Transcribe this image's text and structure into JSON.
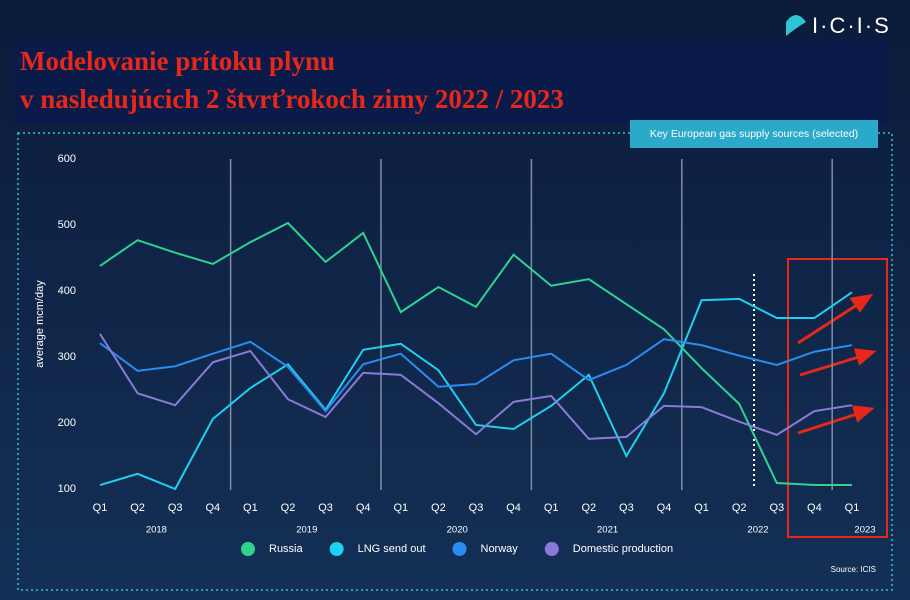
{
  "logo": "I·C·I·S",
  "chart_data": {
    "type": "line",
    "title": [
      "Modelovanie prítoku plynu",
      "v nasledujúcich 2 štvrťrokoch zimy 2022 / 2023"
    ],
    "subtitle": "Key European gas supply sources (selected)",
    "y_label": "average mcm/day",
    "source": "Source: ICIS",
    "categories": [
      "Q1",
      "Q2",
      "Q3",
      "Q4",
      "Q1",
      "Q2",
      "Q3",
      "Q4",
      "Q1",
      "Q2",
      "Q3",
      "Q4",
      "Q1",
      "Q2",
      "Q3",
      "Q4",
      "Q1",
      "Q2",
      "Q3",
      "Q4",
      "Q1"
    ],
    "year_groups": [
      "2018",
      "2019",
      "2020",
      "2021",
      "2022",
      "2023"
    ],
    "ylim": [
      85,
      615
    ],
    "yticks": [
      100,
      200,
      300,
      400,
      500,
      600
    ],
    "series": [
      {
        "name": "Russia",
        "color": "#2ed38f",
        "values": [
          438,
          477,
          458,
          441,
          474,
          503,
          444,
          488,
          368,
          406,
          376,
          455,
          408,
          418,
          380,
          342,
          283,
          229,
          109,
          106,
          106
        ]
      },
      {
        "name": "LNG send out",
        "color": "#1fd0f0",
        "values": [
          106,
          123,
          100,
          206,
          253,
          289,
          220,
          311,
          320,
          280,
          197,
          191,
          226,
          273,
          150,
          245,
          386,
          388,
          359,
          359,
          398
        ]
      },
      {
        "name": "Norway",
        "color": "#2a8cf0",
        "values": [
          321,
          279,
          286,
          305,
          323,
          285,
          218,
          289,
          305,
          255,
          259,
          295,
          305,
          265,
          288,
          327,
          318,
          302,
          288,
          308,
          318
        ]
      },
      {
        "name": "Domestic production",
        "color": "#8a7ad8",
        "values": [
          335,
          245,
          227,
          292,
          309,
          236,
          209,
          276,
          273,
          230,
          183,
          232,
          241,
          176,
          179,
          226,
          224,
          202,
          182,
          218,
          227
        ]
      }
    ]
  }
}
